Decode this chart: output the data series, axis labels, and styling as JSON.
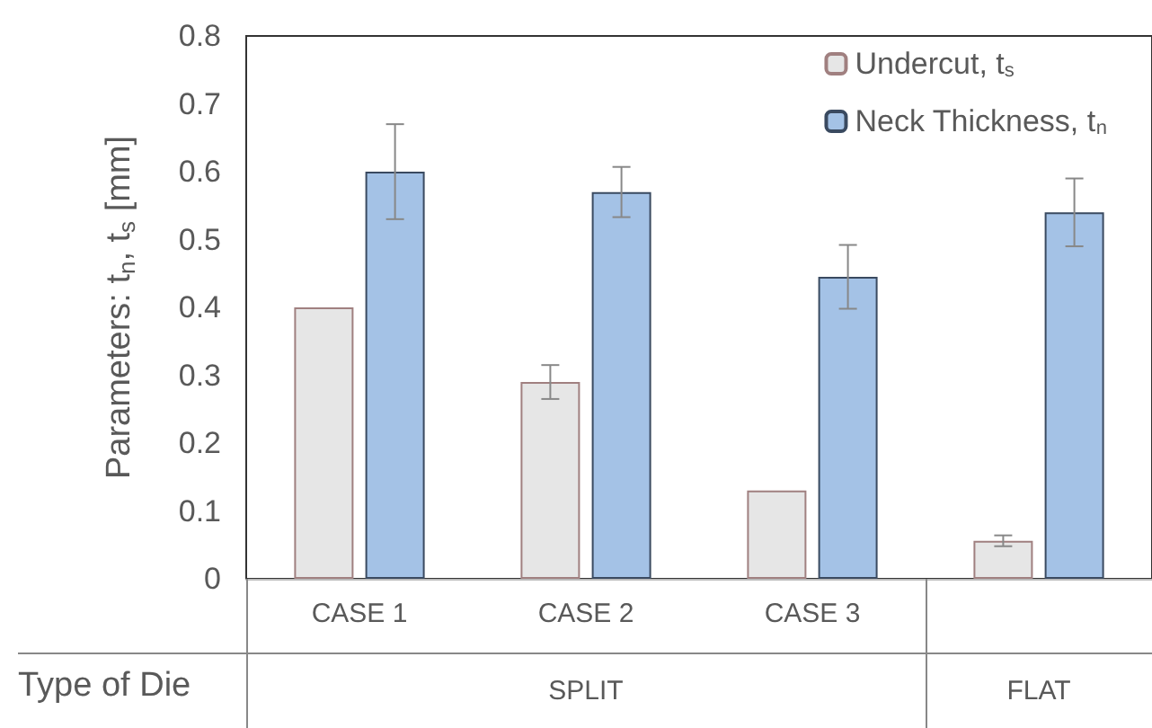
{
  "chart_data": {
    "type": "bar",
    "ylabel": "Parameters: t$_{n}$, t$_{s}$ [mm]",
    "categories": [
      "CASE 1",
      "CASE 2",
      "CASE 3",
      null
    ],
    "series": [
      {
        "name": "Undercut, t$_{s}$",
        "color": "#e6e6e6",
        "values": [
          0.4,
          0.29,
          0.13,
          0.056
        ],
        "errors": [
          null,
          0.025,
          null,
          0.008
        ]
      },
      {
        "name": "Neck Thickness, t$_{n}$",
        "color": "#a4c2e6",
        "values": [
          0.6,
          0.57,
          0.445,
          0.54
        ],
        "errors": [
          0.07,
          0.037,
          0.047,
          0.05
        ]
      }
    ],
    "ylim": [
      0,
      0.8
    ],
    "yticks": [
      0,
      0.1,
      0.2,
      0.3,
      0.4,
      0.5,
      0.6,
      0.7,
      0.8
    ],
    "grid": false,
    "legend": "top right",
    "annotations": [
      "Type of Die",
      "SPLIT",
      "FLAT"
    ]
  }
}
